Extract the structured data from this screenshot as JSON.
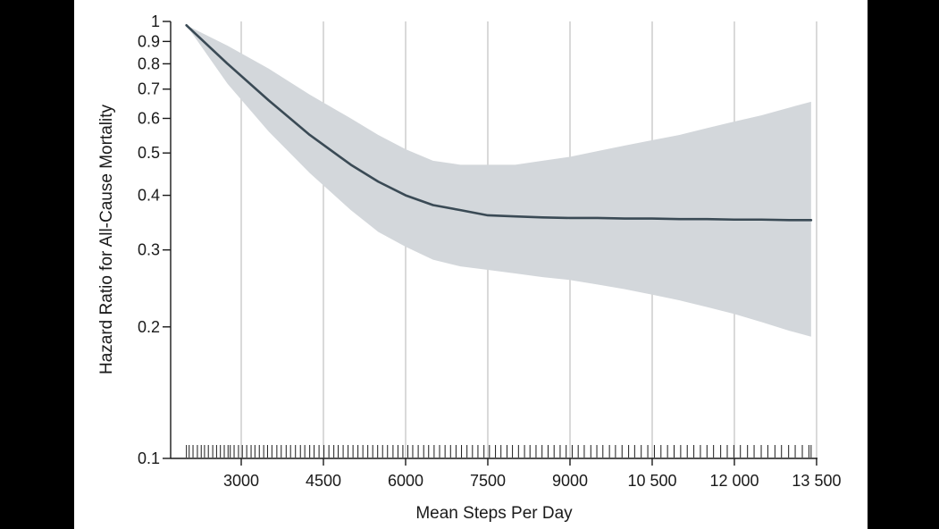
{
  "chart_data": {
    "type": "line",
    "title": "",
    "xlabel": "Mean Steps Per Day",
    "ylabel": "Hazard Ratio for All-Cause Mortality",
    "y_scale": "log",
    "xlim": [
      1000,
      13500
    ],
    "ylim": [
      0.1,
      1
    ],
    "x_ticks": [
      3000,
      4500,
      6000,
      7500,
      9000,
      10500,
      12000,
      13500
    ],
    "x_tick_labels": [
      "3000",
      "4500",
      "6000",
      "7500",
      "9000",
      "10 500",
      "12 000",
      "13 500"
    ],
    "y_ticks": [
      0.1,
      0.2,
      0.3,
      0.4,
      0.5,
      0.6,
      0.7,
      0.8,
      0.9,
      1
    ],
    "y_tick_labels": [
      "0.1",
      "0.2",
      "0.3",
      "0.4",
      "0.5",
      "0.6",
      "0.7",
      "0.8",
      "0.9",
      "1"
    ],
    "grid": "vertical",
    "colors": {
      "line": "#3a4a55",
      "band": "#d3d7db",
      "grid": "#d0d0d0",
      "axis": "#1a1a1a",
      "background": "#000000",
      "panel": "#ffffff"
    },
    "series": [
      {
        "x": [
          2000,
          2750,
          3500,
          4250,
          5000,
          5500,
          6000,
          6500,
          7000,
          7500,
          8000,
          8500,
          9000,
          9500,
          10000,
          10500,
          11000,
          11500,
          12000,
          12500,
          13000,
          13400
        ],
        "y": [
          0.98,
          0.8,
          0.66,
          0.55,
          0.47,
          0.43,
          0.4,
          0.38,
          0.37,
          0.36,
          0.358,
          0.356,
          0.355,
          0.355,
          0.354,
          0.354,
          0.353,
          0.353,
          0.352,
          0.352,
          0.351,
          0.351
        ],
        "lower": [
          0.98,
          0.72,
          0.56,
          0.45,
          0.37,
          0.33,
          0.305,
          0.285,
          0.275,
          0.27,
          0.265,
          0.26,
          0.256,
          0.25,
          0.244,
          0.237,
          0.23,
          0.222,
          0.214,
          0.205,
          0.196,
          0.19
        ],
        "upper": [
          0.98,
          0.88,
          0.78,
          0.68,
          0.6,
          0.55,
          0.51,
          0.48,
          0.47,
          0.47,
          0.47,
          0.48,
          0.49,
          0.505,
          0.52,
          0.535,
          0.55,
          0.57,
          0.59,
          0.61,
          0.635,
          0.655
        ]
      }
    ],
    "rug_x": [
      2000,
      2050,
      2120,
      2200,
      2270,
      2330,
      2400,
      2480,
      2550,
      2620,
      2690,
      2760,
      2800,
      2870,
      2950,
      3020,
      3100,
      3180,
      3250,
      3330,
      3410,
      3480,
      3560,
      3650,
      3730,
      3820,
      3900,
      3990,
      4080,
      4160,
      4250,
      4330,
      4420,
      4510,
      4600,
      4690,
      4770,
      4860,
      4950,
      5040,
      5130,
      5220,
      5310,
      5400,
      5490,
      5580,
      5670,
      5770,
      5860,
      5950,
      6040,
      6130,
      6230,
      6330,
      6420,
      6520,
      6620,
      6720,
      6820,
      6920,
      7020,
      7120,
      7220,
      7320,
      7430,
      7530,
      7640,
      7740,
      7850,
      7950,
      8060,
      8170,
      8270,
      8380,
      8490,
      8600,
      8710,
      8820,
      8930,
      9040,
      9150,
      9260,
      9380,
      9490,
      9600,
      9720,
      9830,
      9950,
      10070,
      10180,
      10300,
      10420,
      10540,
      10660,
      10780,
      10900,
      11020,
      11140,
      11260,
      11380,
      11500,
      11620,
      11750,
      11870,
      11990,
      12110,
      12240,
      12360,
      12490,
      12610,
      12740,
      12860,
      12990,
      13110,
      13240,
      13360,
      13400
    ]
  }
}
